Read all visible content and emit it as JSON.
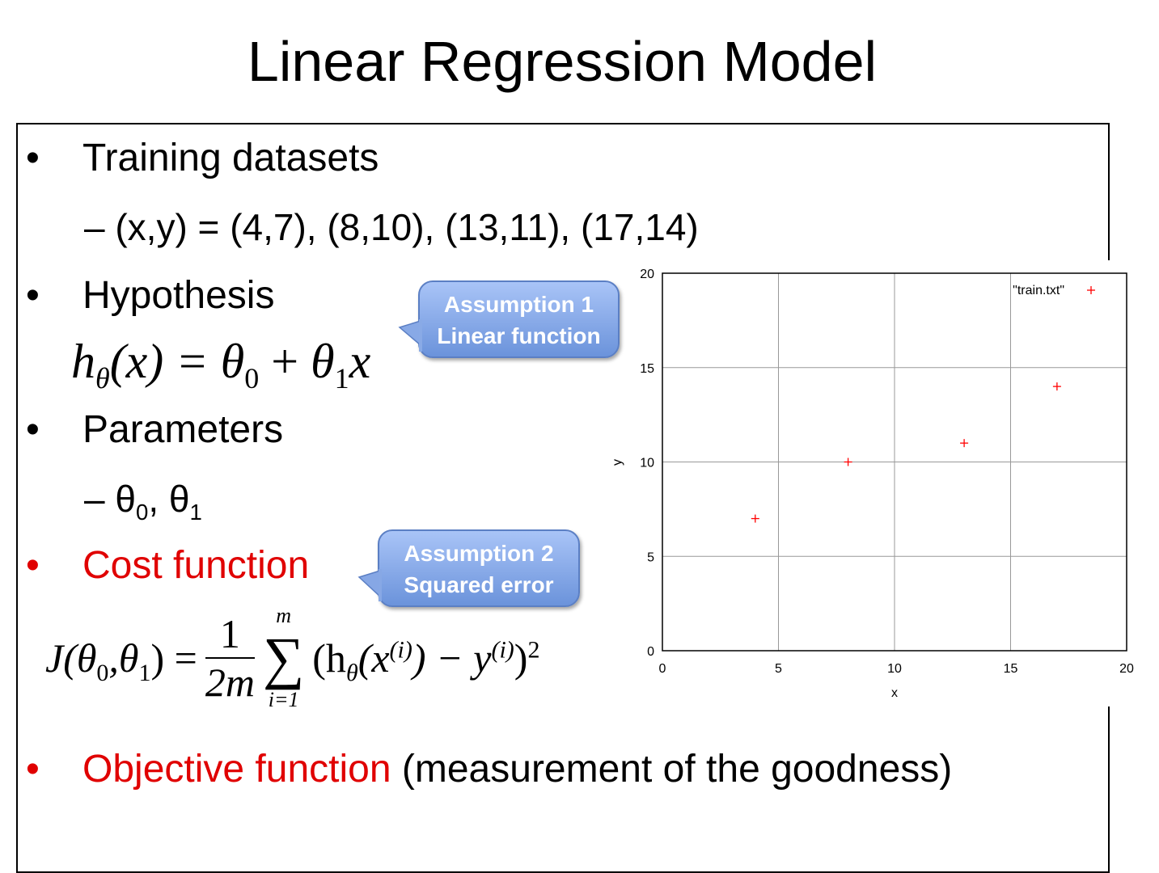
{
  "title": "Linear Regression Model",
  "bullets": {
    "training": "Training datasets",
    "training_sub": "– (x,y) = (4,7), (8,10), (13,11), (17,14)",
    "hypothesis": "Hypothesis",
    "parameters": "Parameters",
    "parameters_sub": {
      "dash": "– ",
      "t0": "θ",
      "s0": "0",
      "sep": ", ",
      "t1": "θ",
      "s1": "1"
    },
    "cost": "Cost function",
    "objective": "Objective function",
    "objective_rest": " (measurement of the goodness)"
  },
  "formulas": {
    "hypothesis": {
      "h": "h",
      "theta": "θ",
      "lhs_arg": "(x) = ",
      "t0": "θ",
      "s0": "0",
      "plus": " + ",
      "t1": "θ",
      "s1": "1",
      "x": "x"
    },
    "cost": {
      "J": "J",
      "args": "(θ",
      "s0": "0",
      "comma": ",θ",
      "s1": "1",
      "close": ") =",
      "num": "1",
      "den": "2m",
      "sum": "∑",
      "upper": "m",
      "lower": "i=1",
      "body1": "(h",
      "theta": "θ",
      "body2": "(x",
      "sup_i": "(i)",
      "body3": ") − y",
      "sup_i2": "(i)",
      "body4": ")",
      "sq": "2"
    }
  },
  "callouts": [
    {
      "line1": "Assumption 1",
      "line2": "Linear function"
    },
    {
      "line1": "Assumption 2",
      "line2": "Squared error"
    }
  ],
  "colors": {
    "bullet_red": "#e00000",
    "callout_blue": "#7fa3e6",
    "point_red": "#ff0000"
  },
  "chart_data": {
    "type": "scatter",
    "xlabel": "x",
    "ylabel": "y",
    "xlim": [
      0,
      20
    ],
    "ylim": [
      0,
      20
    ],
    "xticks": [
      0,
      5,
      10,
      15,
      20
    ],
    "yticks": [
      0,
      5,
      10,
      15,
      20
    ],
    "grid": true,
    "legend_position": "top-right",
    "series": [
      {
        "name": "\"train.txt\"",
        "marker": "plus",
        "x": [
          4,
          8,
          13,
          17
        ],
        "y": [
          7,
          10,
          11,
          14
        ]
      }
    ]
  }
}
